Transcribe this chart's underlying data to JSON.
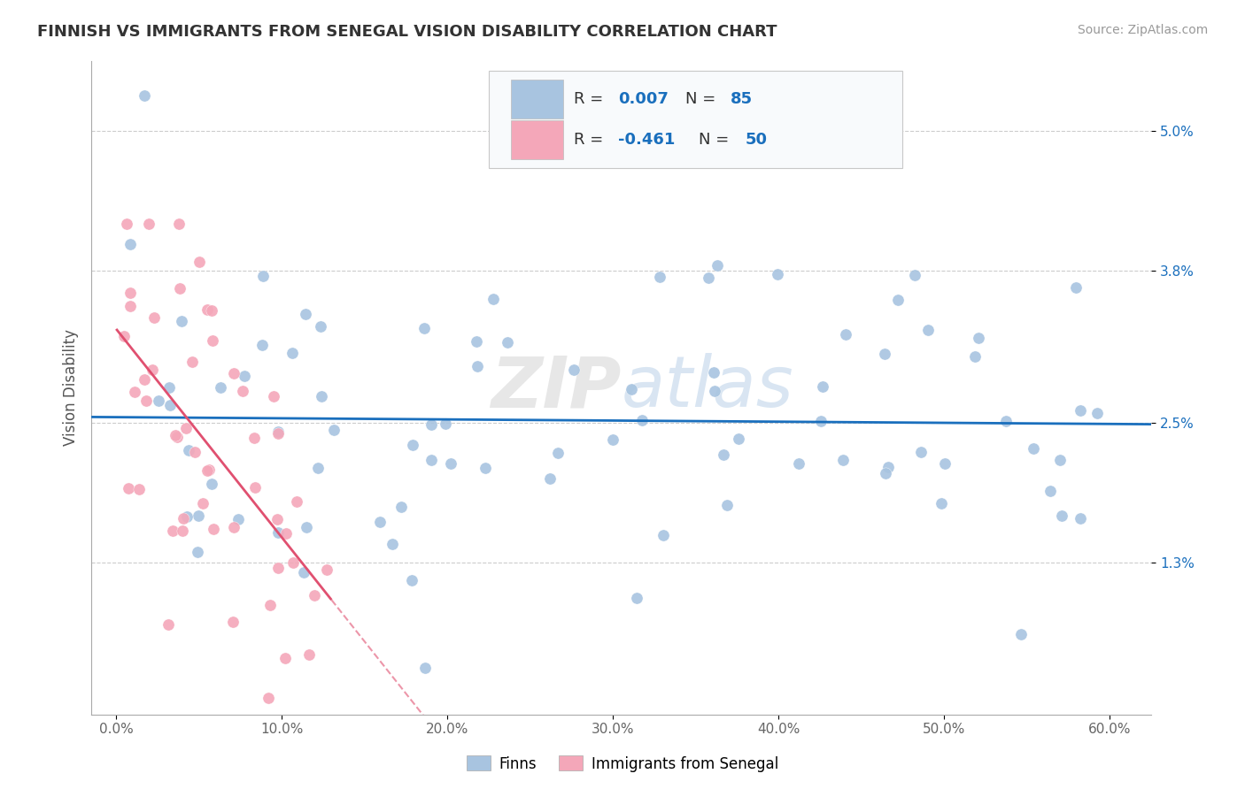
{
  "title": "FINNISH VS IMMIGRANTS FROM SENEGAL VISION DISABILITY CORRELATION CHART",
  "source_text": "Source: ZipAtlas.com",
  "ylabel": "Vision Disability",
  "ytick_labels": [
    "1.3%",
    "2.5%",
    "3.8%",
    "5.0%"
  ],
  "ytick_vals": [
    0.013,
    0.025,
    0.038,
    0.05
  ],
  "ylim": [
    0.0,
    0.056
  ],
  "xlim": [
    -0.015,
    0.625
  ],
  "r_finns": 0.007,
  "n_finns": 85,
  "r_senegal": -0.461,
  "n_senegal": 50,
  "finn_color": "#a8c4e0",
  "senegal_color": "#f4a7b9",
  "trendline_finn_color": "#1a6fbd",
  "trendline_senegal_color": "#e05070",
  "watermark": "ZIPatlas",
  "background_color": "#ffffff"
}
